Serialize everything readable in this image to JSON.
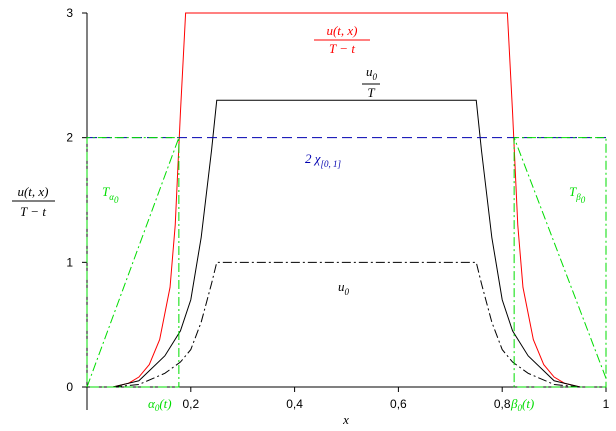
{
  "chart_data": {
    "type": "line",
    "xlabel": "x",
    "ylabel": {
      "numerator": "u(t, x)",
      "denominator": "T − t"
    },
    "xlim": [
      0,
      1
    ],
    "ylim": [
      0,
      3
    ],
    "xticks": [
      {
        "value": 0.2,
        "label": "0,2"
      },
      {
        "value": 0.4,
        "label": "0,4"
      },
      {
        "value": 0.6,
        "label": "0,6"
      },
      {
        "value": 0.8,
        "label": "0,8"
      },
      1
    ],
    "yticks": [
      0,
      1,
      2,
      3
    ],
    "grid": false,
    "series": [
      {
        "color": "#ff0000",
        "dash": "solid",
        "x": [
          0,
          0.05,
          0.08,
          0.1,
          0.12,
          0.14,
          0.16,
          0.17,
          0.18,
          0.19,
          0.81,
          0.82,
          0.83,
          0.84,
          0.86,
          0.88,
          0.9,
          0.92,
          0.95,
          1
        ],
        "values": [
          0,
          0,
          0.03,
          0.08,
          0.18,
          0.38,
          0.8,
          1.3,
          2.2,
          3,
          3,
          2.2,
          1.3,
          0.8,
          0.38,
          0.18,
          0.08,
          0.03,
          0,
          0
        ]
      },
      {
        "color": "#000000",
        "dash": "solid",
        "x": [
          0,
          0.05,
          0.1,
          0.15,
          0.18,
          0.2,
          0.22,
          0.24,
          0.25,
          0.75,
          0.76,
          0.78,
          0.8,
          0.82,
          0.85,
          0.9,
          0.95,
          1
        ],
        "values": [
          0,
          0,
          0.05,
          0.25,
          0.45,
          0.7,
          1.2,
          1.9,
          2.3,
          2.3,
          1.9,
          1.2,
          0.7,
          0.45,
          0.25,
          0.05,
          0,
          0
        ]
      },
      {
        "color": "#000000",
        "dash": "dashdot",
        "x": [
          0.05,
          0.1,
          0.15,
          0.18,
          0.2,
          0.22,
          0.24,
          0.25,
          0.75,
          0.76,
          0.78,
          0.8,
          0.82,
          0.85,
          0.9,
          0.95
        ],
        "values": [
          0,
          0.02,
          0.11,
          0.2,
          0.3,
          0.52,
          0.83,
          1,
          1,
          0.83,
          0.52,
          0.3,
          0.2,
          0.11,
          0.02,
          0
        ]
      },
      {
        "color": "#0000b0",
        "dash": "dash",
        "x": [
          0,
          1
        ],
        "values": [
          2,
          2
        ]
      },
      {
        "color": "#00dd00",
        "dash": "dashdot",
        "x": [
          0,
          0.177,
          0.177,
          0,
          0,
          0.177
        ],
        "values": [
          0,
          2,
          0,
          0,
          2,
          2
        ]
      },
      {
        "color": "#00dd00",
        "dash": "dashdot",
        "x": [
          1,
          0.823,
          0.823,
          1,
          1,
          0.823
        ],
        "values": [
          0.07,
          2,
          0,
          0,
          2,
          2
        ]
      }
    ],
    "annotations": {
      "ratio": {
        "numerator": "u(t, x)",
        "denominator": "T − t"
      },
      "scaled_initial": {
        "numerator": {
          "base": "u",
          "sub": "0"
        },
        "denominator": "T"
      },
      "indicator": {
        "base": "2 χ",
        "sub": "[0, 1]"
      },
      "initial": {
        "base": "u",
        "sub": "0"
      },
      "t_alpha": {
        "base": "T",
        "sub": "α",
        "subsub": "0"
      },
      "t_beta": {
        "base": "T",
        "sub": "β",
        "subsub": "0"
      },
      "alpha_point": {
        "base": "α",
        "sub": "0",
        "rest": "(t)"
      },
      "beta_point": {
        "base": "β",
        "sub": "0",
        "rest": "(t)"
      }
    }
  }
}
